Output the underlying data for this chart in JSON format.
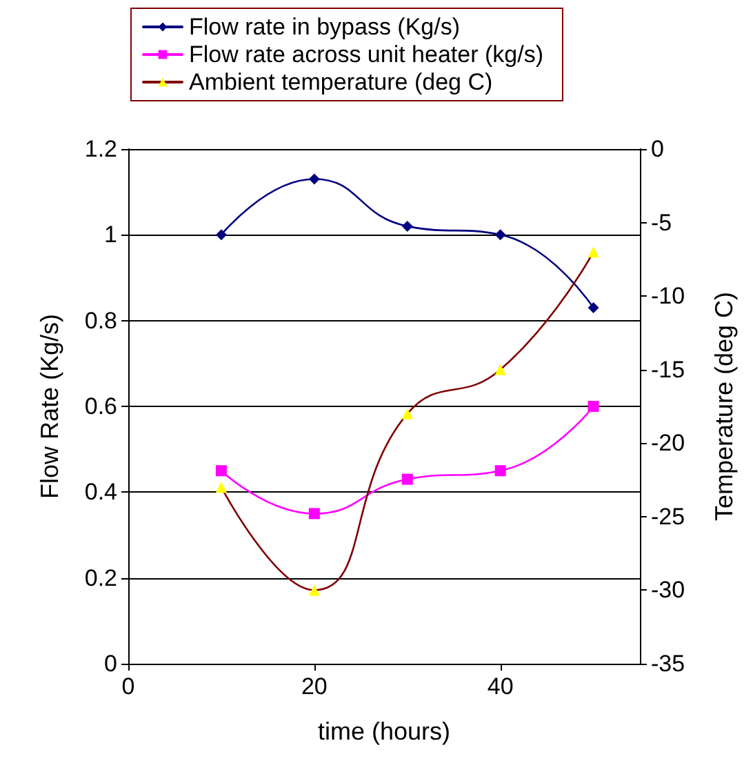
{
  "chart_data": {
    "type": "line",
    "xlabel": "time (hours)",
    "ylabel": "Flow Rate (Kg/s)",
    "y2label": "Temperature (deg C)",
    "x": [
      10,
      20,
      30,
      40,
      50
    ],
    "series": [
      {
        "name": "Flow rate in bypass (Kg/s)",
        "color": "#000080",
        "marker": "diamond",
        "values": [
          1.0,
          1.13,
          1.02,
          1.0,
          0.83
        ]
      },
      {
        "name": "Flow rate across unit heater (kg/s)",
        "color": "#ff00ff",
        "marker": "square",
        "values": [
          0.45,
          0.35,
          0.43,
          0.45,
          0.6
        ]
      },
      {
        "name": "Ambient temperature (deg C)",
        "color": "#800000",
        "colors": [
          "#ffff00",
          "#ffff00",
          "#ffff00",
          "#ffff00",
          "#ffff00"
        ],
        "marker": "triangle",
        "axis": "y2",
        "values": [
          -23,
          -30,
          -18,
          -15,
          -7
        ]
      }
    ],
    "xlim": [
      0,
      55
    ],
    "xticks": [
      0,
      20,
      40
    ],
    "ylim": [
      0,
      1.2
    ],
    "yticks": [
      0,
      0.2,
      0.4,
      0.6,
      0.8,
      1,
      1.2
    ],
    "y2lim": [
      -35,
      0
    ],
    "y2ticks": [
      -35,
      -30,
      -25,
      -20,
      -15,
      -10,
      -5,
      0
    ],
    "grid": "y",
    "legend": "top",
    "line_style": "solid"
  }
}
